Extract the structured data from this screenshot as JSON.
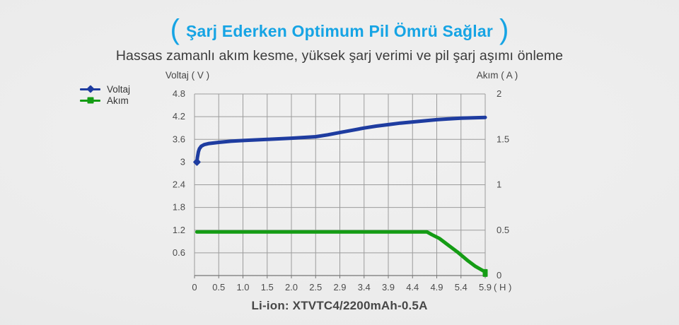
{
  "header": {
    "bracket_left": "(",
    "bracket_right": ")",
    "title": "Şarj Ederken Optimum Pil Ömrü Sağlar",
    "subtitle": "Hassas zamanlı akım kesme, yüksek şarj verimi ve pil şarj aşımı önleme",
    "title_color": "#16a4e4"
  },
  "legend": {
    "items": [
      {
        "label": "Voltaj",
        "color": "#1e3ca0",
        "marker": "diamond"
      },
      {
        "label": "Akım",
        "color": "#149c14",
        "marker": "square"
      }
    ]
  },
  "chart_data": {
    "type": "line",
    "left_axis": {
      "title": "Voltaj ( V )",
      "range": [
        0,
        4.8
      ],
      "tick_labels": [
        "4.8",
        "4.2",
        "3.6",
        "3",
        "2.4",
        "1.8",
        "1.2",
        "0.6"
      ]
    },
    "right_axis": {
      "title": "Akım ( A )",
      "range": [
        0,
        2
      ],
      "tick_labels": [
        "2",
        "1.5",
        "1",
        "0.5",
        "0"
      ]
    },
    "x_axis": {
      "tick_labels": [
        "0",
        "0.5",
        "1.0",
        "1.5",
        "2.0",
        "2.5",
        "2.9",
        "3.4",
        "3.9",
        "4.4",
        "4.9",
        "5.4",
        "5.9"
      ],
      "unit_label": "( H )"
    },
    "grid": {
      "on": true,
      "color": "#9c9c9c",
      "bottom_axis_color": "#767676"
    },
    "legend_position": "top-left",
    "series": [
      {
        "name": "Voltaj",
        "axis": "left",
        "color": "#1e3ca0",
        "marker": "diamond",
        "points": [
          [
            0.05,
            3.0
          ],
          [
            0.06,
            3.12
          ],
          [
            0.08,
            3.27
          ],
          [
            0.1,
            3.35
          ],
          [
            0.14,
            3.42
          ],
          [
            0.2,
            3.46
          ],
          [
            0.3,
            3.49
          ],
          [
            0.5,
            3.52
          ],
          [
            0.75,
            3.55
          ],
          [
            1.0,
            3.57
          ],
          [
            1.5,
            3.6
          ],
          [
            2.0,
            3.63
          ],
          [
            2.5,
            3.67
          ],
          [
            2.7,
            3.72
          ],
          [
            2.9,
            3.78
          ],
          [
            3.15,
            3.84
          ],
          [
            3.4,
            3.9
          ],
          [
            3.65,
            3.95
          ],
          [
            3.9,
            3.99
          ],
          [
            4.15,
            4.03
          ],
          [
            4.4,
            4.06
          ],
          [
            4.65,
            4.09
          ],
          [
            4.9,
            4.12
          ],
          [
            5.15,
            4.14
          ],
          [
            5.4,
            4.16
          ],
          [
            5.65,
            4.17
          ],
          [
            5.9,
            4.18
          ]
        ]
      },
      {
        "name": "Akım",
        "axis": "right",
        "color": "#149c14",
        "marker": "square",
        "points": [
          [
            0.05,
            0.48
          ],
          [
            1.0,
            0.48
          ],
          [
            2.0,
            0.48
          ],
          [
            3.0,
            0.48
          ],
          [
            4.0,
            0.48
          ],
          [
            4.7,
            0.48
          ],
          [
            4.8,
            0.45
          ],
          [
            4.95,
            0.41
          ],
          [
            5.15,
            0.33
          ],
          [
            5.35,
            0.25
          ],
          [
            5.55,
            0.16
          ],
          [
            5.7,
            0.1
          ],
          [
            5.8,
            0.07
          ],
          [
            5.9,
            0.04
          ]
        ]
      }
    ],
    "caption": "Li-ion: XTVTC4/2200mAh-0.5A"
  }
}
